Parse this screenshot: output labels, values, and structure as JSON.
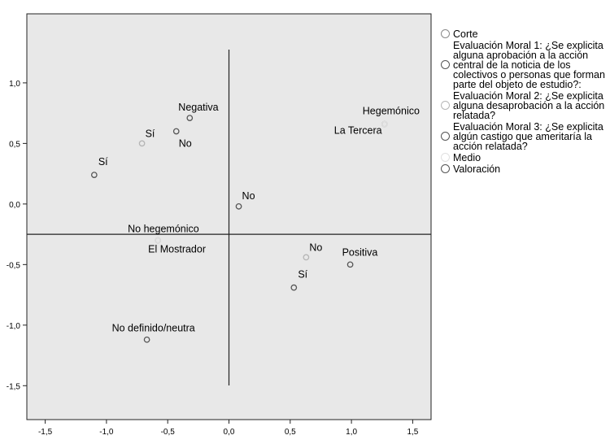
{
  "chart_data": {
    "type": "scatter",
    "title": "",
    "xlabel": "",
    "ylabel": "",
    "xlim": [
      -1.65,
      1.65
    ],
    "ylim": [
      -1.78,
      1.57
    ],
    "x_ticks": [
      -1.5,
      -1.0,
      -0.5,
      0.0,
      0.5,
      1.0,
      1.5
    ],
    "x_tick_labels": [
      "-1,5",
      "-1,0",
      "-0,5",
      "0,0",
      "0,5",
      "1,0",
      "1,5"
    ],
    "y_ticks": [
      1.0,
      0.5,
      0.0,
      -0.5,
      -1.0,
      -1.5
    ],
    "y_tick_labels": [
      "1,0",
      "0,5",
      "0,0",
      "-0,5",
      "-1,0",
      "-1,5"
    ],
    "reference_lines": {
      "x": 0.0,
      "y": -0.25
    },
    "plot_background": "#e8e8e8",
    "legend_placement": "right",
    "series": [
      {
        "name": "Corte",
        "color": "#8a8a8a",
        "points": [
          {
            "label": "Hegemónico",
            "x": 1.27,
            "y": 0.66
          },
          {
            "label": "No hegemónico",
            "x": -0.58,
            "y": -0.3
          }
        ]
      },
      {
        "name": "Evaluación Moral 1: ¿Se explicita alguna aprobación a la acción central de la noticia de los colectivos o personas que forman parte del objeto de estudio?:",
        "color": "#555555",
        "points": [
          {
            "label": "Sí",
            "x": -1.1,
            "y": 0.24
          },
          {
            "label": "No",
            "x": 0.08,
            "y": -0.02
          }
        ]
      },
      {
        "name": "Evaluación Moral 2: ¿Se explicita alguna desaprobación a la acción relatada?",
        "color": "#b5b5b5",
        "points": [
          {
            "label": "Sí",
            "x": -0.71,
            "y": 0.5
          },
          {
            "label": "No",
            "x": 0.63,
            "y": -0.44
          }
        ]
      },
      {
        "name": "Evaluación Moral 3: ¿Se explicita algún castigo que ameritaría la acción relatada?",
        "color": "#555555",
        "points": [
          {
            "label": "No",
            "x": -0.43,
            "y": 0.6
          },
          {
            "label": "Sí",
            "x": 0.53,
            "y": -0.69
          }
        ]
      },
      {
        "name": "Medio",
        "color": "#e0e0e0",
        "points": [
          {
            "label": "La Tercera",
            "x": 1.27,
            "y": 0.66
          },
          {
            "label": "El Mostrador",
            "x": -0.58,
            "y": -0.3
          }
        ]
      },
      {
        "name": "Valoración",
        "color": "#555555",
        "points": [
          {
            "label": "Negativa",
            "x": -0.32,
            "y": 0.71
          },
          {
            "label": "Positiva",
            "x": 0.99,
            "y": -0.5
          },
          {
            "label": "No definido/neutra",
            "x": -0.67,
            "y": -1.12
          }
        ]
      }
    ]
  }
}
